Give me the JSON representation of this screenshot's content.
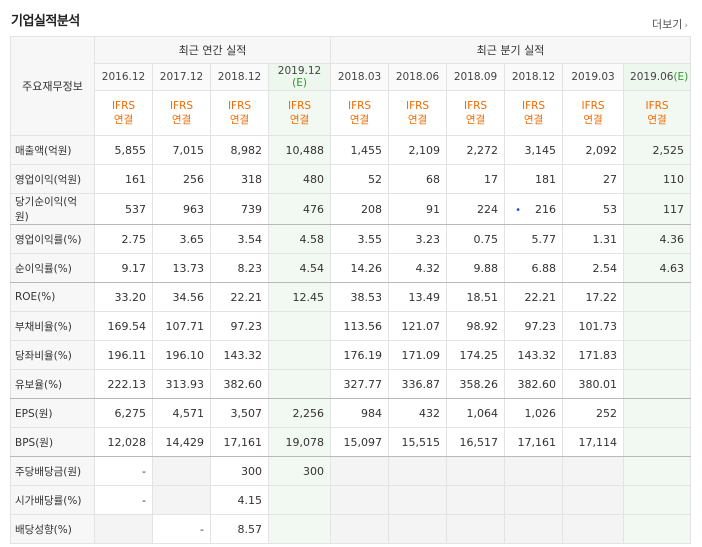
{
  "section_title": "기업실적분석",
  "more_link": "더보기",
  "corner_label": "주요재무정보",
  "annual_header": "최근 연간 실적",
  "quarter_header": "최근 분기 실적",
  "periods": [
    {
      "label": "2016.12",
      "est": ""
    },
    {
      "label": "2017.12",
      "est": ""
    },
    {
      "label": "2018.12",
      "est": ""
    },
    {
      "label": "2019.12",
      "est": "(E)"
    },
    {
      "label": "2018.03",
      "est": ""
    },
    {
      "label": "2018.06",
      "est": ""
    },
    {
      "label": "2018.09",
      "est": ""
    },
    {
      "label": "2018.12",
      "est": ""
    },
    {
      "label": "2019.03",
      "est": ""
    },
    {
      "label": "2019.06",
      "est": "(E)"
    }
  ],
  "basis": {
    "line1": "IFRS",
    "line2": "연결"
  },
  "rows": [
    {
      "label": "매출액(억원)",
      "values": [
        "5,855",
        "7,015",
        "8,982",
        "10,488",
        "1,455",
        "2,109",
        "2,272",
        "3,145",
        "2,092",
        "2,525"
      ]
    },
    {
      "label": "영업이익(억원)",
      "values": [
        "161",
        "256",
        "318",
        "480",
        "52",
        "68",
        "17",
        "181",
        "27",
        "110"
      ]
    },
    {
      "label": "당기순이익(억원)",
      "values": [
        "537",
        "963",
        "739",
        "476",
        "208",
        "91",
        "224",
        "216",
        "53",
        "117"
      ]
    },
    {
      "label": "영업이익률(%)",
      "values": [
        "2.75",
        "3.65",
        "3.54",
        "4.58",
        "3.55",
        "3.23",
        "0.75",
        "5.77",
        "1.31",
        "4.36"
      ]
    },
    {
      "label": "순이익률(%)",
      "values": [
        "9.17",
        "13.73",
        "8.23",
        "4.54",
        "14.26",
        "4.32",
        "9.88",
        "6.88",
        "2.54",
        "4.63"
      ]
    },
    {
      "label": "ROE(%)",
      "values": [
        "33.20",
        "34.56",
        "22.21",
        "12.45",
        "38.53",
        "13.49",
        "18.51",
        "22.21",
        "17.22",
        ""
      ]
    },
    {
      "label": "부채비율(%)",
      "values": [
        "169.54",
        "107.71",
        "97.23",
        "",
        "113.56",
        "121.07",
        "98.92",
        "97.23",
        "101.73",
        ""
      ]
    },
    {
      "label": "당좌비율(%)",
      "values": [
        "196.11",
        "196.10",
        "143.32",
        "",
        "176.19",
        "171.09",
        "174.25",
        "143.32",
        "171.83",
        ""
      ]
    },
    {
      "label": "유보율(%)",
      "values": [
        "222.13",
        "313.93",
        "382.60",
        "",
        "327.77",
        "336.87",
        "358.26",
        "382.60",
        "380.01",
        ""
      ]
    },
    {
      "label": "EPS(원)",
      "values": [
        "6,275",
        "4,571",
        "3,507",
        "2,256",
        "984",
        "432",
        "1,064",
        "1,026",
        "252",
        ""
      ]
    },
    {
      "label": "BPS(원)",
      "values": [
        "12,028",
        "14,429",
        "17,161",
        "19,078",
        "15,097",
        "15,515",
        "16,517",
        "17,161",
        "17,114",
        ""
      ]
    },
    {
      "label": "주당배당금(원)",
      "values": [
        "-",
        "",
        "300",
        "300",
        "",
        "",
        "",
        "",
        "",
        ""
      ]
    },
    {
      "label": "시가배당률(%)",
      "values": [
        "-",
        "",
        "4.15",
        "",
        "",
        "",
        "",
        "",
        "",
        ""
      ]
    },
    {
      "label": "배당성향(%)",
      "values": [
        "",
        "-",
        "8.57",
        "",
        "",
        "",
        "",
        "",
        "",
        ""
      ]
    }
  ],
  "dot_marker": "•"
}
